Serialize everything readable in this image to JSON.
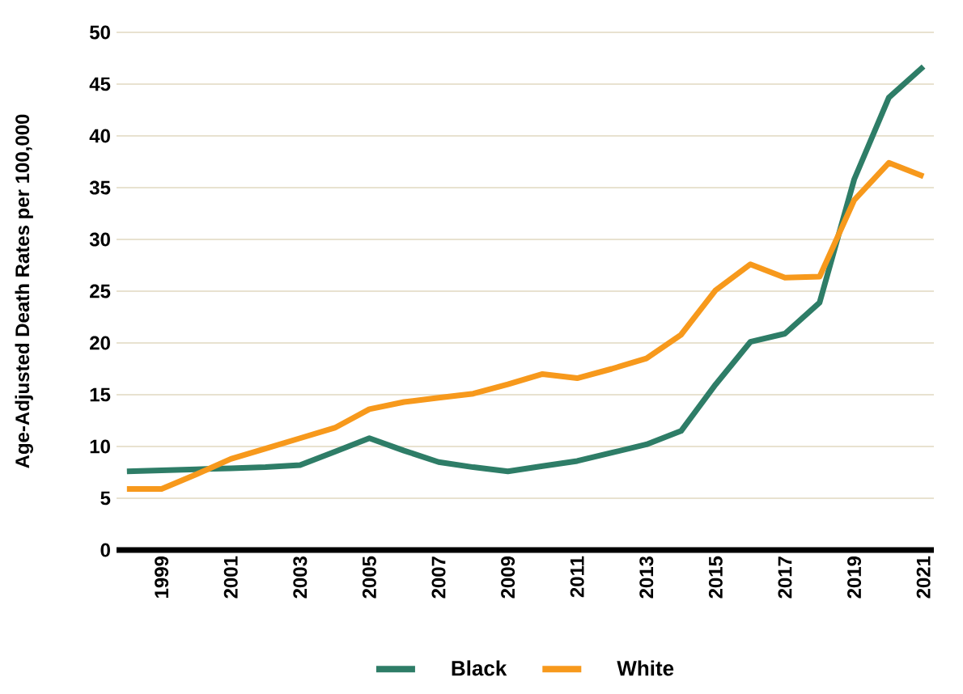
{
  "chart_data": {
    "type": "line",
    "ylabel": "Age-Adjusted Death Rates per 100,000",
    "x": [
      1998,
      1999,
      2000,
      2001,
      2002,
      2003,
      2004,
      2005,
      2006,
      2007,
      2008,
      2009,
      2010,
      2011,
      2012,
      2013,
      2014,
      2015,
      2016,
      2017,
      2018,
      2019,
      2020,
      2021
    ],
    "series": [
      {
        "name": "Black",
        "color": "#2e7d67",
        "values": [
          7.6,
          7.7,
          7.8,
          7.9,
          8.0,
          8.2,
          9.5,
          10.8,
          9.6,
          8.5,
          8.0,
          7.6,
          8.1,
          8.6,
          9.4,
          10.2,
          11.5,
          16.0,
          20.1,
          20.9,
          23.9,
          35.8,
          43.7,
          46.7
        ]
      },
      {
        "name": "White",
        "color": "#f7991c",
        "values": [
          5.9,
          5.9,
          7.3,
          8.8,
          9.8,
          10.8,
          11.8,
          13.6,
          14.3,
          14.7,
          15.1,
          16.0,
          17.0,
          16.6,
          17.5,
          18.5,
          20.8,
          25.1,
          27.6,
          26.3,
          26.4,
          33.8,
          37.4,
          36.1
        ]
      }
    ],
    "xlim": [
      1997.7,
      2021.3
    ],
    "xticks": [
      1999,
      2001,
      2003,
      2005,
      2007,
      2009,
      2011,
      2013,
      2015,
      2017,
      2019,
      2021
    ],
    "ylim": [
      0,
      50
    ],
    "yticks": [
      0,
      5,
      10,
      15,
      20,
      25,
      30,
      35,
      40,
      45,
      50
    ],
    "grid": "y",
    "legend": "bottom",
    "marker": "none",
    "line_style": "solid"
  }
}
